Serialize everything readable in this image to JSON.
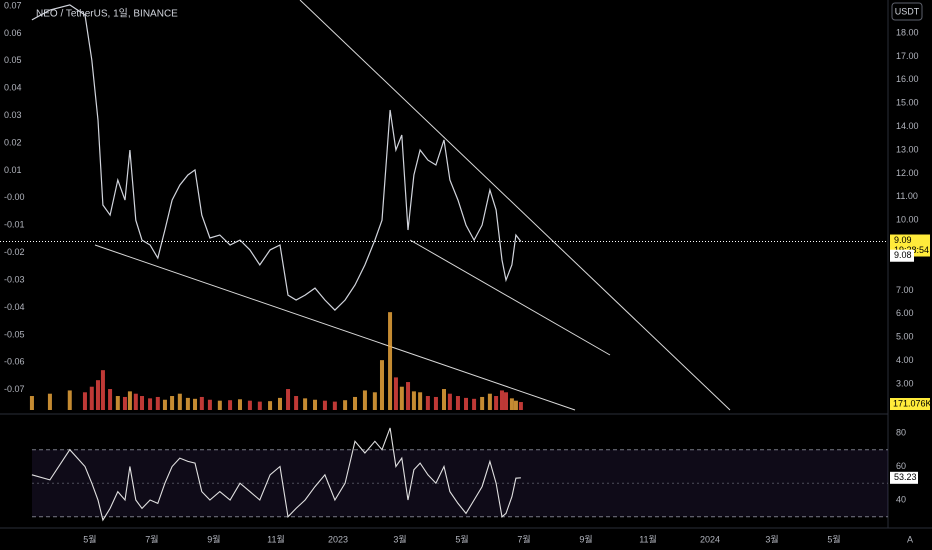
{
  "chart_data": {
    "type": "line",
    "title": "NEO / TetherUS, 1일, BINANCE",
    "currency": "USDT",
    "corner_mark": "A",
    "x": [
      -1.87,
      -1.29,
      -0.65,
      -0.16,
      0.06,
      0.26,
      0.42,
      0.65,
      0.9,
      1.13,
      1.29,
      1.48,
      1.68,
      1.94,
      2.19,
      2.42,
      2.65,
      2.9,
      3.16,
      3.39,
      3.61,
      3.87,
      4.19,
      4.52,
      4.84,
      5.16,
      5.48,
      5.81,
      6.13,
      6.39,
      6.65,
      6.94,
      7.26,
      7.58,
      7.9,
      8.23,
      8.55,
      8.87,
      9.19,
      9.42,
      9.68,
      9.87,
      10.06,
      10.26,
      10.45,
      10.65,
      10.9,
      11.16,
      11.42,
      11.61,
      11.87,
      12.13,
      12.39,
      12.65,
      12.9,
      13.1,
      13.29,
      13.42,
      13.61,
      13.74,
      13.9
    ],
    "xlim": [
      -2.9,
      25.74
    ],
    "xticks": [
      {
        "value": 0,
        "label": "5월"
      },
      {
        "value": 2,
        "label": "7월"
      },
      {
        "value": 4,
        "label": "9월"
      },
      {
        "value": 6,
        "label": "11월"
      },
      {
        "value": 8,
        "label": "2023"
      },
      {
        "value": 10,
        "label": "3월"
      },
      {
        "value": 12,
        "label": "5월"
      },
      {
        "value": 14,
        "label": "7월"
      },
      {
        "value": 16,
        "label": "9월"
      },
      {
        "value": 18,
        "label": "11월"
      },
      {
        "value": 20,
        "label": "2024"
      },
      {
        "value": 22,
        "label": "3월"
      },
      {
        "value": 24,
        "label": "5월"
      }
    ],
    "series": [
      {
        "name": "NEO",
        "color": "#d1d4dc",
        "values": [
          18.56,
          18.98,
          19.2,
          18.77,
          16.85,
          14.28,
          10.65,
          10.22,
          11.72,
          10.86,
          13.0,
          10.0,
          9.15,
          8.94,
          8.38,
          9.58,
          10.86,
          11.5,
          11.93,
          12.15,
          10.22,
          9.24,
          9.37,
          8.94,
          9.15,
          8.73,
          8.09,
          8.73,
          8.94,
          6.8,
          6.59,
          6.8,
          7.1,
          6.59,
          6.16,
          6.59,
          7.23,
          8.09,
          9.15,
          10.0,
          14.71,
          13.0,
          13.64,
          9.58,
          11.93,
          13.0,
          12.57,
          12.36,
          13.43,
          11.72,
          10.86,
          9.79,
          9.15,
          9.79,
          11.29,
          10.44,
          8.3,
          7.44,
          8.09,
          9.37,
          9.09
        ]
      }
    ],
    "ylim": [
      1.89,
      19.41
    ],
    "yticks": [
      {
        "value": 18,
        "label": "18.00"
      },
      {
        "value": 17,
        "label": "17.00"
      },
      {
        "value": 16,
        "label": "16.00"
      },
      {
        "value": 15,
        "label": "15.00"
      },
      {
        "value": 14,
        "label": "14.00"
      },
      {
        "value": 13,
        "label": "13.00"
      },
      {
        "value": 12,
        "label": "12.00"
      },
      {
        "value": 11,
        "label": "11.00"
      },
      {
        "value": 10,
        "label": "10.00"
      },
      {
        "value": 7,
        "label": "7.00"
      },
      {
        "value": 6,
        "label": "6.00"
      },
      {
        "value": 5,
        "label": "5.00"
      },
      {
        "value": 4,
        "label": "4.00"
      },
      {
        "value": 3,
        "label": "3.00"
      }
    ],
    "y2lim": [
      -0.0774,
      0.0722
    ],
    "y2ticks": [
      0.07,
      0.06,
      0.05,
      0.04,
      0.03,
      0.02,
      0.01,
      {
        "value": 0,
        "label": "-0.00"
      },
      -0.01,
      -0.02,
      -0.03,
      -0.04,
      -0.05,
      -0.06,
      -0.07
    ],
    "countdown": "19:28:54",
    "price_marker": {
      "value": 9.08,
      "label": "9.08"
    },
    "volume": {
      "up_color": "#e8a33b",
      "down_color": "#e0433f",
      "ylim": [
        0,
        8800000
      ],
      "last_label": "171.076K",
      "values": [
        300000,
        350000,
        420000,
        380000,
        500000,
        640000,
        855000,
        450000,
        300000,
        280000,
        400000,
        350000,
        300000,
        250000,
        280000,
        220000,
        300000,
        350000,
        260000,
        240000,
        280000,
        220000,
        200000,
        210000,
        230000,
        200000,
        180000,
        190000,
        260000,
        450000,
        300000,
        250000,
        220000,
        200000,
        180000,
        210000,
        280000,
        420000,
        380000,
        1070000,
        2100000,
        700000,
        500000,
        600000,
        400000,
        380000,
        300000,
        280000,
        450000,
        350000,
        300000,
        260000,
        240000,
        280000,
        350000,
        300000,
        420000,
        380000,
        250000,
        200000,
        171076
      ]
    },
    "rsi": {
      "color": "#e0e0e0",
      "ylim": [
        25.1,
        87.7
      ],
      "yticks": [
        80,
        60,
        40
      ],
      "band": [
        30,
        70
      ],
      "midline": 50,
      "values": [
        55,
        52,
        70,
        60,
        50,
        40,
        28,
        35,
        45,
        40,
        60,
        40,
        35,
        40,
        38,
        50,
        60,
        65,
        63,
        62,
        45,
        40,
        45,
        40,
        50,
        45,
        40,
        55,
        60,
        30,
        35,
        40,
        48,
        55,
        40,
        50,
        75,
        68,
        75,
        70,
        83,
        60,
        65,
        40,
        58,
        62,
        55,
        50,
        60,
        45,
        38,
        32,
        40,
        48,
        63,
        50,
        30,
        32,
        42,
        53,
        53.23
      ]
    }
  }
}
